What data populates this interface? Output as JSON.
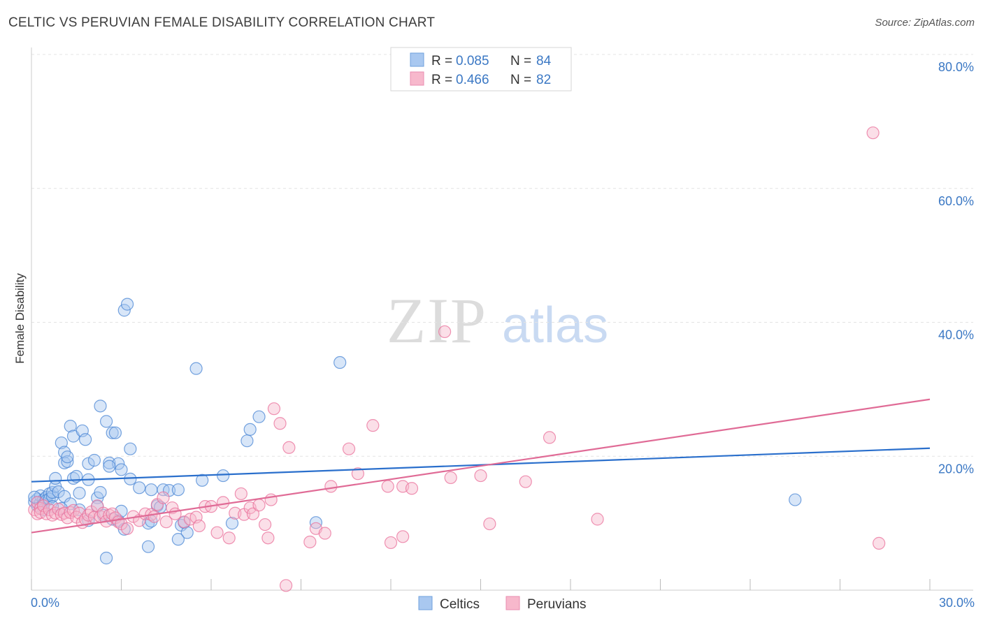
{
  "header": {
    "title": "CELTIC VS PERUVIAN FEMALE DISABILITY CORRELATION CHART",
    "source": "Source: ZipAtlas.com"
  },
  "watermark": {
    "part1": "ZIP",
    "part2": "atlas"
  },
  "legend": {
    "rows": [
      {
        "r_label": "R =",
        "r_value": "0.085",
        "n_label": "N =",
        "n_value": "84",
        "color": "#a9c8f0"
      },
      {
        "r_label": "R =",
        "r_value": "0.466",
        "n_label": "N =",
        "n_value": "82",
        "color": "#f7b8cc"
      }
    ]
  },
  "bottom_legend": [
    {
      "name": "Celtics",
      "color": "#a9c8f0"
    },
    {
      "name": "Peruvians",
      "color": "#f7b8cc"
    }
  ],
  "chart_data": {
    "type": "scatter",
    "title": "CELTIC VS PERUVIAN FEMALE DISABILITY CORRELATION CHART",
    "xlabel": "",
    "ylabel": "Female Disability",
    "xlim": [
      0,
      30
    ],
    "ylim": [
      0,
      80
    ],
    "x_tick_labels": [
      "0.0%",
      "30.0%"
    ],
    "y_ticks": [
      20,
      40,
      60,
      80
    ],
    "y_tick_labels": [
      "20.0%",
      "40.0%",
      "60.0%",
      "80.0%"
    ],
    "grid": "horizontal-dashed",
    "legend_placement": "top-center",
    "series": [
      {
        "name": "Celtics",
        "color": "#4a86d4",
        "fill": "#a9c8f0",
        "trend": [
          [
            0,
            16.2
          ],
          [
            30,
            21.2
          ]
        ],
        "points": [
          [
            0.1,
            13.2
          ],
          [
            0.2,
            12.6
          ],
          [
            0.2,
            13.6
          ],
          [
            0.3,
            13.0
          ],
          [
            0.3,
            14.1
          ],
          [
            0.4,
            13.5
          ],
          [
            0.4,
            12.9
          ],
          [
            0.5,
            13.9
          ],
          [
            0.5,
            13.4
          ],
          [
            0.6,
            14.4
          ],
          [
            0.6,
            13.6
          ],
          [
            0.7,
            14.0
          ],
          [
            0.7,
            14.6
          ],
          [
            0.8,
            15.5
          ],
          [
            0.8,
            16.7
          ],
          [
            0.9,
            14.7
          ],
          [
            1.0,
            22.0
          ],
          [
            1.1,
            20.6
          ],
          [
            1.1,
            19.0
          ],
          [
            1.2,
            19.2
          ],
          [
            1.2,
            19.9
          ],
          [
            1.3,
            24.5
          ],
          [
            1.4,
            23.0
          ],
          [
            1.4,
            16.7
          ],
          [
            1.5,
            17.0
          ],
          [
            1.6,
            14.5
          ],
          [
            1.7,
            23.8
          ],
          [
            1.8,
            22.5
          ],
          [
            1.9,
            16.5
          ],
          [
            1.9,
            18.9
          ],
          [
            2.1,
            19.4
          ],
          [
            2.2,
            13.8
          ],
          [
            2.3,
            14.6
          ],
          [
            2.3,
            27.5
          ],
          [
            2.5,
            25.2
          ],
          [
            2.6,
            19.0
          ],
          [
            2.7,
            23.5
          ],
          [
            2.8,
            23.5
          ],
          [
            2.9,
            18.9
          ],
          [
            3.0,
            18.0
          ],
          [
            3.1,
            41.8
          ],
          [
            3.2,
            42.7
          ],
          [
            3.3,
            16.6
          ],
          [
            3.3,
            21.1
          ],
          [
            1.1,
            14.0
          ],
          [
            1.3,
            12.9
          ],
          [
            1.6,
            12.0
          ],
          [
            1.9,
            10.4
          ],
          [
            2.2,
            12.5
          ],
          [
            2.4,
            11.2
          ],
          [
            2.7,
            10.6
          ],
          [
            2.9,
            10.4
          ],
          [
            3.0,
            11.8
          ],
          [
            3.1,
            9.1
          ],
          [
            3.6,
            15.3
          ],
          [
            3.9,
            10.0
          ],
          [
            4.0,
            10.3
          ],
          [
            4.0,
            15.0
          ],
          [
            4.2,
            12.6
          ],
          [
            4.4,
            15.0
          ],
          [
            4.6,
            14.9
          ],
          [
            4.9,
            15.0
          ],
          [
            5.0,
            9.7
          ],
          [
            5.1,
            10.1
          ],
          [
            5.2,
            8.6
          ],
          [
            5.5,
            33.1
          ],
          [
            5.7,
            16.4
          ],
          [
            6.4,
            17.1
          ],
          [
            6.7,
            10.0
          ],
          [
            7.2,
            22.3
          ],
          [
            7.3,
            24.0
          ],
          [
            7.6,
            25.9
          ],
          [
            9.5,
            10.1
          ],
          [
            10.3,
            34.0
          ],
          [
            25.5,
            13.5
          ],
          [
            2.5,
            4.8
          ],
          [
            3.9,
            6.5
          ],
          [
            4.9,
            7.6
          ],
          [
            1.0,
            12.2
          ],
          [
            0.4,
            12.0
          ],
          [
            0.7,
            12.5
          ],
          [
            0.1,
            13.9
          ],
          [
            2.6,
            18.5
          ],
          [
            4.3,
            12.4
          ]
        ]
      },
      {
        "name": "Peruvians",
        "color": "#e96f9a",
        "fill": "#f7b8cc",
        "trend": [
          [
            0,
            8.6
          ],
          [
            30,
            28.5
          ]
        ],
        "points": [
          [
            0.1,
            12.0
          ],
          [
            0.2,
            11.4
          ],
          [
            0.2,
            13.1
          ],
          [
            0.3,
            12.2
          ],
          [
            0.3,
            11.6
          ],
          [
            0.4,
            12.6
          ],
          [
            0.5,
            11.4
          ],
          [
            0.6,
            12.0
          ],
          [
            0.7,
            11.2
          ],
          [
            0.8,
            11.5
          ],
          [
            0.9,
            12.1
          ],
          [
            1.0,
            11.3
          ],
          [
            1.1,
            11.5
          ],
          [
            1.2,
            10.8
          ],
          [
            1.3,
            11.6
          ],
          [
            1.4,
            11.9
          ],
          [
            1.5,
            10.9
          ],
          [
            1.6,
            11.5
          ],
          [
            1.7,
            10.1
          ],
          [
            1.8,
            10.6
          ],
          [
            1.9,
            11.2
          ],
          [
            2.0,
            11.7
          ],
          [
            2.1,
            10.9
          ],
          [
            2.2,
            12.6
          ],
          [
            2.3,
            11.0
          ],
          [
            2.4,
            11.5
          ],
          [
            2.5,
            10.3
          ],
          [
            2.6,
            11.2
          ],
          [
            2.7,
            11.4
          ],
          [
            2.8,
            10.8
          ],
          [
            2.9,
            10.2
          ],
          [
            3.0,
            9.9
          ],
          [
            3.2,
            9.2
          ],
          [
            3.4,
            11.0
          ],
          [
            3.6,
            10.4
          ],
          [
            3.8,
            11.4
          ],
          [
            4.0,
            11.3
          ],
          [
            4.1,
            11.0
          ],
          [
            4.2,
            12.8
          ],
          [
            4.4,
            13.8
          ],
          [
            4.5,
            10.2
          ],
          [
            4.7,
            12.3
          ],
          [
            4.8,
            11.4
          ],
          [
            5.1,
            10.2
          ],
          [
            5.3,
            10.6
          ],
          [
            5.5,
            10.9
          ],
          [
            5.6,
            9.6
          ],
          [
            5.8,
            12.5
          ],
          [
            6.0,
            12.5
          ],
          [
            6.2,
            8.6
          ],
          [
            6.4,
            13.1
          ],
          [
            6.6,
            7.8
          ],
          [
            6.8,
            11.5
          ],
          [
            7.0,
            14.4
          ],
          [
            7.1,
            11.3
          ],
          [
            7.3,
            12.3
          ],
          [
            7.4,
            11.4
          ],
          [
            7.6,
            12.7
          ],
          [
            7.8,
            9.8
          ],
          [
            8.0,
            13.5
          ],
          [
            8.1,
            27.1
          ],
          [
            8.3,
            24.9
          ],
          [
            8.6,
            21.3
          ],
          [
            9.3,
            7.2
          ],
          [
            9.5,
            9.2
          ],
          [
            9.8,
            8.5
          ],
          [
            10.0,
            15.5
          ],
          [
            10.6,
            21.1
          ],
          [
            10.9,
            17.4
          ],
          [
            11.4,
            24.6
          ],
          [
            11.9,
            15.5
          ],
          [
            12.4,
            15.5
          ],
          [
            12.7,
            15.2
          ],
          [
            13.8,
            38.6
          ],
          [
            14.0,
            16.8
          ],
          [
            15.0,
            17.1
          ],
          [
            15.3,
            9.9
          ],
          [
            16.5,
            16.2
          ],
          [
            17.3,
            22.8
          ],
          [
            18.9,
            10.6
          ],
          [
            28.1,
            68.3
          ],
          [
            28.3,
            7.0
          ]
        ]
      }
    ],
    "extra_points_peruvians": [
      [
        7.9,
        7.8
      ],
      [
        8.5,
        0.7
      ],
      [
        12.0,
        7.1
      ],
      [
        12.4,
        8.0
      ]
    ]
  }
}
